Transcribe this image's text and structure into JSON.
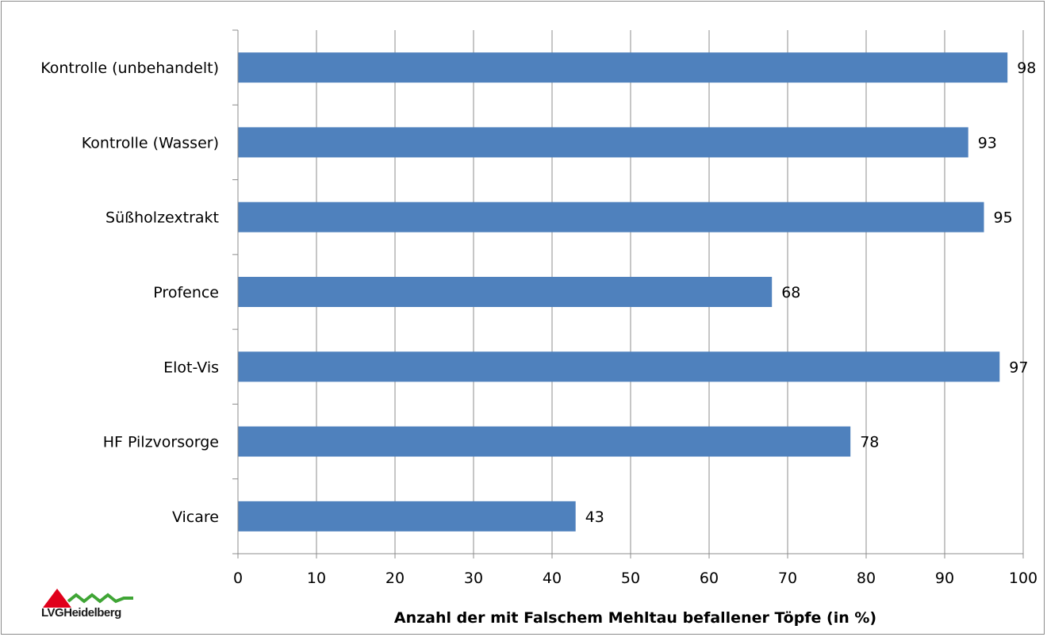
{
  "chart_data": {
    "type": "bar",
    "orientation": "horizontal",
    "categories": [
      "Kontrolle (unbehandelt)",
      "Kontrolle (Wasser)",
      "Süßholzextrakt",
      "Profence",
      "Elot-Vis",
      "HF Pilzvorsorge",
      "Vicare"
    ],
    "values": [
      98,
      93,
      95,
      68,
      97,
      78,
      43
    ],
    "data_labels": [
      "98",
      "93",
      "95",
      "68",
      "97",
      "78",
      "43"
    ],
    "xlabel": "Anzahl der mit Falschem Mehltau befallener Töpfe (in %)",
    "ylabel": "",
    "title": "",
    "xlim": [
      0,
      100
    ],
    "xticks": [
      0,
      10,
      20,
      30,
      40,
      50,
      60,
      70,
      80,
      90,
      100
    ],
    "grid": "vertical",
    "legend": "none",
    "bar_color": "#4F81BD"
  },
  "logo": {
    "text_lvg": "LVG",
    "text_place": "Heidelberg",
    "roof_color": "#E0001B",
    "wave_color": "#3FA535"
  }
}
